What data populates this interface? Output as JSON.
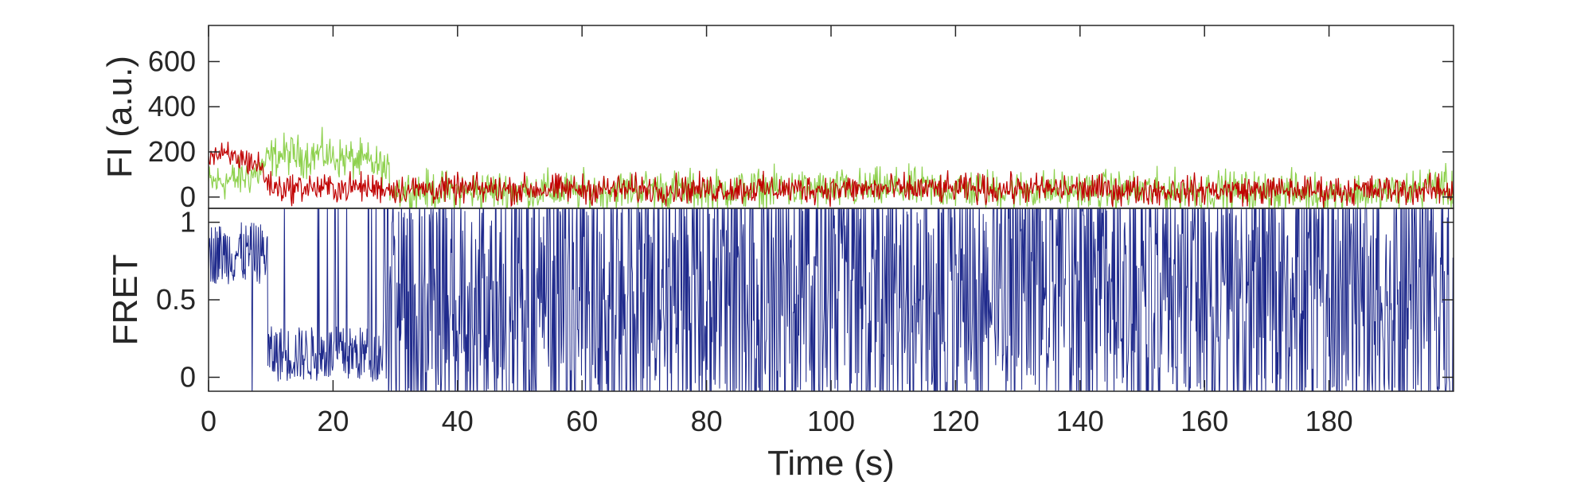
{
  "chart_data": [
    {
      "type": "line",
      "panel": "top",
      "ylabel": "FI (a.u.)",
      "xlim": [
        0,
        200
      ],
      "ylim": [
        -50,
        760
      ],
      "yticks": [
        0,
        200,
        400,
        600
      ],
      "ytick_labels": [
        "0",
        "200",
        "400",
        "600"
      ],
      "series": [
        {
          "color": "#8fd14f",
          "x": [
            0,
            2,
            4,
            6,
            8,
            10,
            12,
            14,
            16,
            18,
            20,
            22,
            24,
            26,
            28,
            30,
            40,
            50,
            60,
            70,
            80,
            90,
            100,
            110,
            120,
            130,
            140,
            150,
            160,
            170,
            180,
            190,
            198,
            200
          ],
          "values": [
            60,
            70,
            75,
            90,
            110,
            175,
            190,
            185,
            180,
            195,
            175,
            170,
            160,
            150,
            130,
            30,
            25,
            30,
            25,
            35,
            30,
            35,
            30,
            40,
            35,
            30,
            30,
            25,
            30,
            25,
            20,
            20,
            60,
            10
          ]
        },
        {
          "color": "#c00000",
          "x": [
            0,
            2,
            4,
            6,
            8,
            10,
            12,
            14,
            16,
            18,
            20,
            22,
            24,
            26,
            28,
            30,
            40,
            50,
            60,
            70,
            80,
            90,
            100,
            110,
            120,
            130,
            140,
            150,
            160,
            170,
            180,
            190,
            198,
            200
          ],
          "values": [
            195,
            180,
            175,
            165,
            145,
            45,
            40,
            40,
            45,
            40,
            40,
            40,
            45,
            40,
            40,
            35,
            35,
            35,
            35,
            35,
            35,
            35,
            35,
            35,
            35,
            35,
            35,
            30,
            30,
            30,
            30,
            30,
            30,
            30
          ]
        }
      ],
      "noise": {
        "green": 55,
        "red": 40
      }
    },
    {
      "type": "line",
      "panel": "bottom",
      "ylabel": "FRET",
      "xlabel": "Time (s)",
      "xlim": [
        0,
        200
      ],
      "ylim": [
        -0.09,
        1.09
      ],
      "yticks": [
        0,
        0.5,
        1
      ],
      "ytick_labels": [
        "0",
        "0.5",
        "1"
      ],
      "xticks": [
        0,
        20,
        40,
        60,
        80,
        100,
        120,
        140,
        160,
        180
      ],
      "xtick_labels": [
        "0",
        "20",
        "40",
        "60",
        "80",
        "100",
        "120",
        "140",
        "160",
        "180"
      ],
      "series": [
        {
          "color": "#1f2a8c",
          "segments": [
            {
              "x_from": 0,
              "x_to": 9.5,
              "behavior": "high",
              "level": 0.8,
              "spread": 0.2
            },
            {
              "x_from": 9.5,
              "x_to": 28,
              "behavior": "low",
              "level": 0.15,
              "spread": 0.18
            },
            {
              "x_from": 28,
              "x_to": 200,
              "behavior": "full-range",
              "level": 0.5,
              "spread": 0.6
            }
          ]
        }
      ]
    }
  ]
}
